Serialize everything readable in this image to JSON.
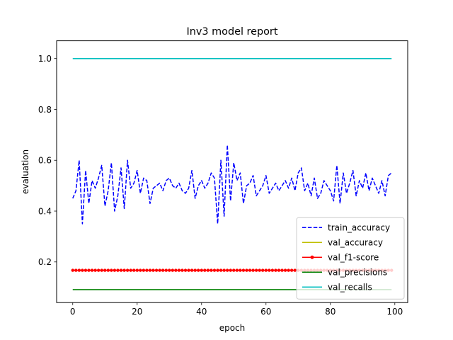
{
  "chart_data": {
    "type": "line",
    "title": "Inv3 model report",
    "xlabel": "epoch",
    "ylabel": "evaluation",
    "xlim": [
      -5,
      104
    ],
    "ylim": [
      0.04,
      1.07
    ],
    "xticks": [
      0,
      20,
      40,
      60,
      80,
      100
    ],
    "yticks": [
      0.2,
      0.4,
      0.6,
      0.8,
      1.0
    ],
    "xtick_labels": [
      "0",
      "20",
      "40",
      "60",
      "80",
      "100"
    ],
    "ytick_labels": [
      "0.2",
      "0.4",
      "0.6",
      "0.8",
      "1.0"
    ],
    "grid": false,
    "legend_position": "lower-right",
    "series": [
      {
        "name": "train_accuracy",
        "color": "#0000ff",
        "style": "dashed",
        "marker": "none",
        "x": [
          0,
          1,
          2,
          3,
          4,
          5,
          6,
          7,
          8,
          9,
          10,
          11,
          12,
          13,
          14,
          15,
          16,
          17,
          18,
          19,
          20,
          21,
          22,
          23,
          24,
          25,
          26,
          27,
          28,
          29,
          30,
          31,
          32,
          33,
          34,
          35,
          36,
          37,
          38,
          39,
          40,
          41,
          42,
          43,
          44,
          45,
          46,
          47,
          48,
          49,
          50,
          51,
          52,
          53,
          54,
          55,
          56,
          57,
          58,
          59,
          60,
          61,
          62,
          63,
          64,
          65,
          66,
          67,
          68,
          69,
          70,
          71,
          72,
          73,
          74,
          75,
          76,
          77,
          78,
          79,
          80,
          81,
          82,
          83,
          84,
          85,
          86,
          87,
          88,
          89,
          90,
          91,
          92,
          93,
          94,
          95,
          96,
          97,
          98,
          99
        ],
        "y": [
          0.45,
          0.48,
          0.6,
          0.35,
          0.56,
          0.43,
          0.52,
          0.49,
          0.53,
          0.58,
          0.42,
          0.48,
          0.59,
          0.4,
          0.46,
          0.57,
          0.41,
          0.6,
          0.49,
          0.51,
          0.56,
          0.47,
          0.53,
          0.52,
          0.43,
          0.49,
          0.5,
          0.51,
          0.48,
          0.52,
          0.53,
          0.5,
          0.49,
          0.51,
          0.48,
          0.47,
          0.49,
          0.56,
          0.45,
          0.5,
          0.52,
          0.49,
          0.51,
          0.55,
          0.53,
          0.35,
          0.6,
          0.38,
          0.66,
          0.44,
          0.59,
          0.52,
          0.55,
          0.43,
          0.5,
          0.51,
          0.54,
          0.46,
          0.48,
          0.5,
          0.54,
          0.47,
          0.49,
          0.51,
          0.48,
          0.5,
          0.52,
          0.49,
          0.53,
          0.48,
          0.55,
          0.57,
          0.48,
          0.51,
          0.46,
          0.53,
          0.45,
          0.47,
          0.52,
          0.5,
          0.48,
          0.44,
          0.58,
          0.43,
          0.55,
          0.47,
          0.51,
          0.56,
          0.46,
          0.52,
          0.49,
          0.55,
          0.48,
          0.53,
          0.5,
          0.47,
          0.52,
          0.46,
          0.54,
          0.55
        ]
      },
      {
        "name": "val_accuracy",
        "color": "#bfbf00",
        "style": "solid",
        "marker": "none",
        "x": [
          0,
          99
        ],
        "y": [
          0.167,
          0.167
        ]
      },
      {
        "name": "val_f1-score",
        "color": "#ff0000",
        "style": "solid",
        "marker": "dot",
        "x": [
          0,
          1,
          2,
          3,
          4,
          5,
          6,
          7,
          8,
          9,
          10,
          11,
          12,
          13,
          14,
          15,
          16,
          17,
          18,
          19,
          20,
          21,
          22,
          23,
          24,
          25,
          26,
          27,
          28,
          29,
          30,
          31,
          32,
          33,
          34,
          35,
          36,
          37,
          38,
          39,
          40,
          41,
          42,
          43,
          44,
          45,
          46,
          47,
          48,
          49,
          50,
          51,
          52,
          53,
          54,
          55,
          56,
          57,
          58,
          59,
          60,
          61,
          62,
          63,
          64,
          65,
          66,
          67,
          68,
          69,
          70,
          71,
          72,
          73,
          74,
          75,
          76,
          77,
          78,
          79,
          80,
          81,
          82,
          83,
          84,
          85,
          86,
          87,
          88,
          89,
          90,
          91,
          92,
          93,
          94,
          95,
          96,
          97,
          98,
          99
        ],
        "y": [
          0.167,
          0.167,
          0.167,
          0.167,
          0.167,
          0.167,
          0.167,
          0.167,
          0.167,
          0.167,
          0.167,
          0.167,
          0.167,
          0.167,
          0.167,
          0.167,
          0.167,
          0.167,
          0.167,
          0.167,
          0.167,
          0.167,
          0.167,
          0.167,
          0.167,
          0.167,
          0.167,
          0.167,
          0.167,
          0.167,
          0.167,
          0.167,
          0.167,
          0.167,
          0.167,
          0.167,
          0.167,
          0.167,
          0.167,
          0.167,
          0.167,
          0.167,
          0.167,
          0.167,
          0.167,
          0.167,
          0.167,
          0.167,
          0.167,
          0.167,
          0.167,
          0.167,
          0.167,
          0.167,
          0.167,
          0.167,
          0.167,
          0.167,
          0.167,
          0.167,
          0.167,
          0.167,
          0.167,
          0.167,
          0.167,
          0.167,
          0.167,
          0.167,
          0.167,
          0.167,
          0.167,
          0.167,
          0.167,
          0.167,
          0.167,
          0.167,
          0.167,
          0.167,
          0.167,
          0.167,
          0.167,
          0.167,
          0.167,
          0.167,
          0.167,
          0.167,
          0.167,
          0.167,
          0.167,
          0.167,
          0.167,
          0.167,
          0.167,
          0.167,
          0.167,
          0.167,
          0.167,
          0.167,
          0.167,
          0.167
        ]
      },
      {
        "name": "val_precisions",
        "color": "#008000",
        "style": "solid",
        "marker": "none",
        "x": [
          0,
          99
        ],
        "y": [
          0.091,
          0.091
        ]
      },
      {
        "name": "val_recalls",
        "color": "#00bfbf",
        "style": "solid",
        "marker": "none",
        "x": [
          0,
          99
        ],
        "y": [
          1.0,
          1.0
        ]
      }
    ]
  }
}
